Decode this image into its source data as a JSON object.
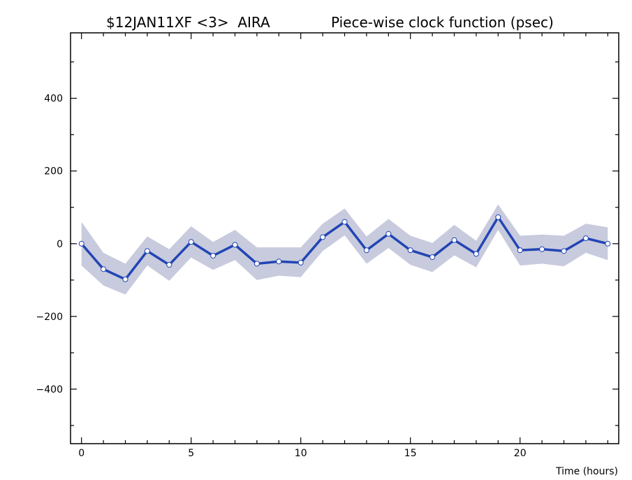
{
  "chart_data": {
    "type": "line",
    "title_left": "$12JAN11XF <3>  AIRA",
    "title_right": "Piece-wise clock function (psec)",
    "xlabel": "Time (hours)",
    "ylabel": "",
    "xlim": [
      -0.5,
      24.5
    ],
    "ylim": [
      -550,
      580
    ],
    "x_ticks": [
      0,
      5,
      10,
      15,
      20
    ],
    "x_tick_labels": [
      "0",
      "5",
      "10",
      "15",
      "20"
    ],
    "y_ticks": [
      -400,
      -200,
      0,
      200,
      400
    ],
    "y_tick_labels": [
      "−400",
      "−200",
      "0",
      "200",
      "400"
    ],
    "grid": false,
    "series": [
      {
        "x": [
          0,
          1,
          2,
          3,
          4,
          5,
          6,
          7,
          8,
          9,
          10,
          11,
          12,
          13,
          14,
          15,
          16,
          17,
          18,
          19,
          20,
          21,
          22,
          23,
          24
        ],
        "values": [
          0,
          -70,
          -98,
          -20,
          -58,
          5,
          -33,
          -3,
          -55,
          -49,
          -52,
          18,
          60,
          -18,
          27,
          -18,
          -37,
          10,
          -28,
          73,
          -18,
          -15,
          -20,
          15,
          0
        ],
        "upper": [
          60,
          -25,
          -55,
          20,
          -15,
          48,
          5,
          38,
          -10,
          -10,
          -10,
          55,
          97,
          20,
          68,
          22,
          2,
          52,
          8,
          108,
          22,
          25,
          22,
          55,
          45
        ],
        "lower": [
          -60,
          -115,
          -140,
          -60,
          -102,
          -38,
          -72,
          -45,
          -100,
          -88,
          -92,
          -20,
          23,
          -55,
          -12,
          -58,
          -78,
          -32,
          -65,
          38,
          -60,
          -55,
          -62,
          -25,
          -45
        ]
      }
    ],
    "colors": {
      "line": "#2245b5",
      "band": "#c8cbdd",
      "marker_fill": "#ffffff",
      "marker_stroke": "#2245b5",
      "axis": "#000000"
    }
  }
}
